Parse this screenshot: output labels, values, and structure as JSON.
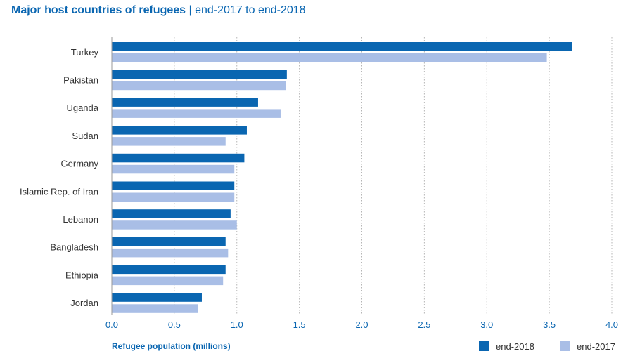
{
  "chart_data": {
    "type": "bar",
    "orientation": "horizontal",
    "title": "Major host countries of refugees",
    "subtitle": "end-2017 to end-2018",
    "xlabel": "Refugee population (millions)",
    "ylabel": "",
    "xlim": [
      0,
      4.0
    ],
    "xticks": [
      "0.0",
      "0.5",
      "1.0",
      "1.5",
      "2.0",
      "2.5",
      "3.0",
      "3.5",
      "4.0"
    ],
    "grid": "vertical dotted",
    "legend_position": "bottom-right",
    "categories": [
      "Turkey",
      "Pakistan",
      "Uganda",
      "Sudan",
      "Germany",
      "Islamic Rep. of Iran",
      "Lebanon",
      "Bangladesh",
      "Ethiopia",
      "Jordan"
    ],
    "series": [
      {
        "name": "end-2018",
        "color": "#0a66b1",
        "values": [
          3.68,
          1.4,
          1.17,
          1.08,
          1.06,
          0.98,
          0.95,
          0.91,
          0.91,
          0.72
        ]
      },
      {
        "name": "end-2017",
        "color": "#a9bee6",
        "values": [
          3.48,
          1.39,
          1.35,
          0.91,
          0.98,
          0.98,
          1.0,
          0.93,
          0.89,
          0.69
        ]
      }
    ]
  }
}
